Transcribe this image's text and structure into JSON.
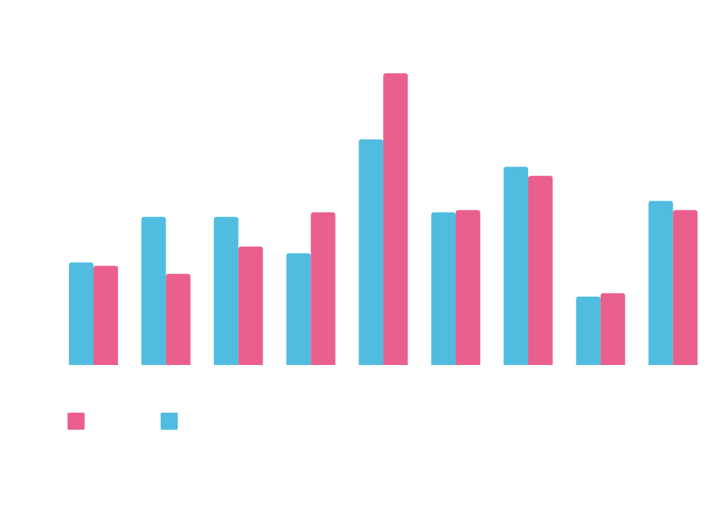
{
  "colors": {
    "series_a": "#50bde0",
    "series_b": "#eb5f8d",
    "background": "#ffffff"
  },
  "chart_data": {
    "type": "bar",
    "categories": [
      "",
      "",
      "",
      "",
      "",
      "",
      "",
      "",
      ""
    ],
    "series": [
      {
        "name": "",
        "color": "#50bde0",
        "values": [
          45,
          65,
          65,
          49,
          99,
          67,
          87,
          30,
          72
        ]
      },
      {
        "name": "",
        "color": "#eb5f8d",
        "values": [
          43.5,
          40,
          52,
          67,
          128,
          68,
          83,
          31.5,
          68
        ]
      }
    ],
    "ylim": [
      0,
      128
    ],
    "grid": false,
    "axes_visible": false,
    "legend": "bottom-left",
    "legend_order": [
      1,
      0
    ]
  }
}
